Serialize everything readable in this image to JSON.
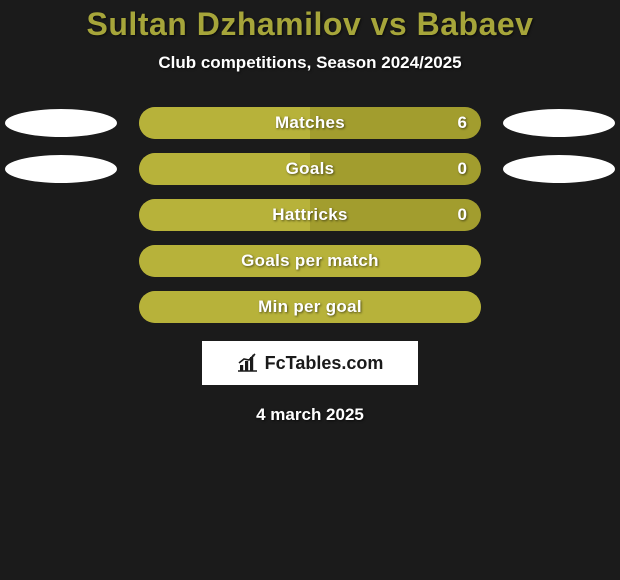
{
  "background_color": "#1b1b1b",
  "title": {
    "text": "Sultan Dzhamilov vs Babaev",
    "color": "#a6a53a",
    "fontsize": 32,
    "weight": 900
  },
  "subtitle": {
    "text": "Club competitions, Season 2024/2025",
    "color": "#ffffff",
    "fontsize": 17,
    "weight": 700
  },
  "ellipse": {
    "color": "#ffffff",
    "width": 112,
    "height": 28
  },
  "bar_base_color": "#a29d2e",
  "bar_fill_color": "#b7b23a",
  "stats": [
    {
      "label": "Matches",
      "value_right": "6",
      "fill_left_pct": 50,
      "show_left_ellipse": true,
      "show_right_ellipse": true
    },
    {
      "label": "Goals",
      "value_right": "0",
      "fill_left_pct": 50,
      "show_left_ellipse": true,
      "show_right_ellipse": true
    },
    {
      "label": "Hattricks",
      "value_right": "0",
      "fill_left_pct": 50,
      "show_left_ellipse": false,
      "show_right_ellipse": false
    },
    {
      "label": "Goals per match",
      "value_right": "",
      "fill_left_pct": 100,
      "show_left_ellipse": false,
      "show_right_ellipse": false
    },
    {
      "label": "Min per goal",
      "value_right": "",
      "fill_left_pct": 100,
      "show_left_ellipse": false,
      "show_right_ellipse": false
    }
  ],
  "logo": {
    "brand_prefix": "Fc",
    "brand_suffix": "Tables.com",
    "box_bg": "#ffffff",
    "text_color": "#1a1a1a",
    "icon_color": "#1a1a1a"
  },
  "date": {
    "text": "4 march 2025",
    "color": "#ffffff",
    "fontsize": 17,
    "weight": 800
  }
}
